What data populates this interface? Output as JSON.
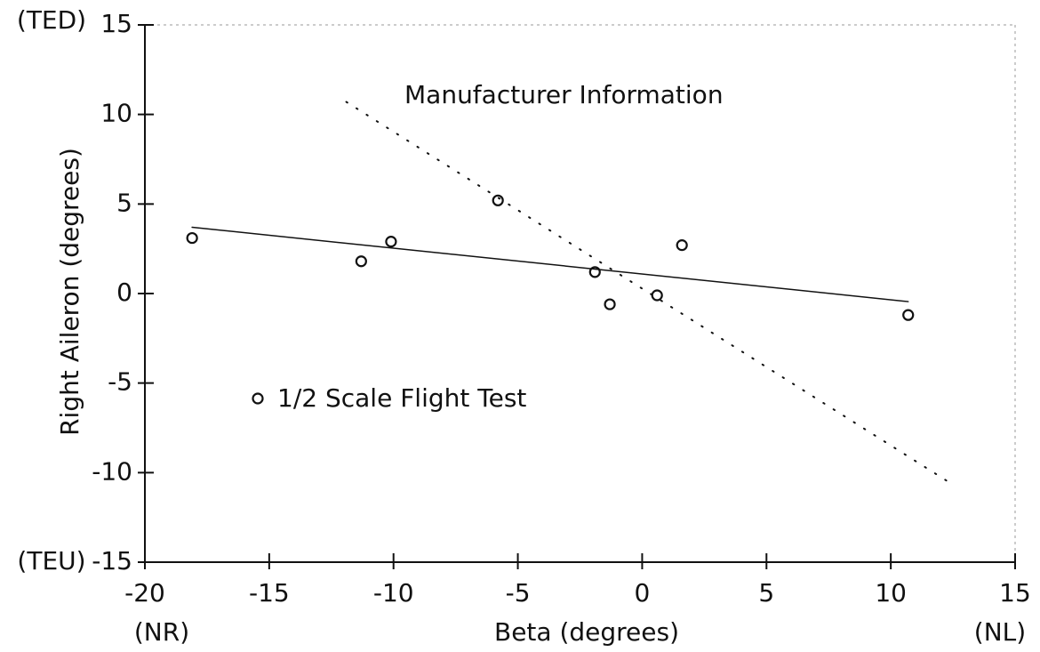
{
  "chart_data": {
    "type": "scatter",
    "xlabel": "Beta (degrees)",
    "ylabel": "Right Aileron (degrees)",
    "x_end_labels": [
      "(NR)",
      "(NL)"
    ],
    "y_end_labels": [
      "(TEU)",
      "(TED)"
    ],
    "xlim": [
      -20,
      15
    ],
    "xticks": [
      -20,
      -15,
      -10,
      -5,
      0,
      5,
      10,
      15
    ],
    "ylim": [
      -15,
      15
    ],
    "yticks": [
      -15,
      -10,
      -5,
      0,
      5,
      10,
      15
    ],
    "grid": false,
    "color": "#111111",
    "series": [
      {
        "name": "1/2 Scale Flight Test",
        "style": "markers",
        "x": [
          -18.1,
          -11.3,
          -10.1,
          -5.8,
          -1.9,
          -1.3,
          0.6,
          1.6,
          10.7
        ],
        "values": [
          3.1,
          1.8,
          2.9,
          5.2,
          1.2,
          -0.6,
          -0.1,
          2.7,
          -1.2
        ]
      },
      {
        "style": "solid",
        "x": [
          -18.1,
          10.7
        ],
        "values": [
          3.7,
          -0.45
        ]
      },
      {
        "name": "Manufacturer Information",
        "style": "dotted",
        "x": [
          -11.9,
          12.3
        ],
        "values": [
          10.7,
          -10.5
        ]
      }
    ]
  }
}
